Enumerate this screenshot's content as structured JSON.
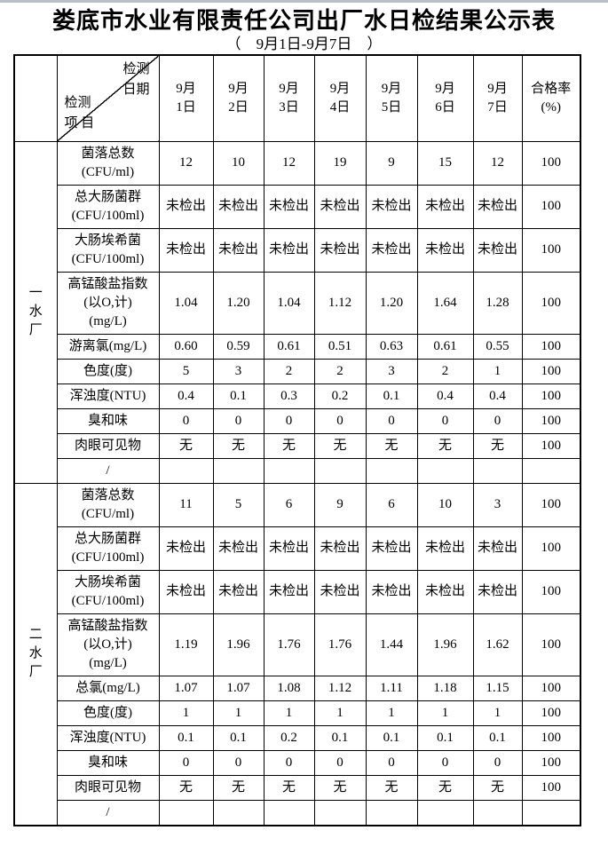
{
  "page": {
    "title": "娄底市水业有限责任公司出厂水日检结果公示表",
    "subtitle": "（　9月1日-9月7日　）"
  },
  "table": {
    "corner": {
      "top": "检测\n日期",
      "bottom": "检测\n项 目"
    },
    "dates": [
      "9月\n1日",
      "9月\n2日",
      "9月\n3日",
      "9月\n4日",
      "9月\n5日",
      "9月\n6日",
      "9月\n7日"
    ],
    "pass_rate_header": "合格率\n(%)",
    "sections": [
      {
        "plant": "一\n水\n厂",
        "rows": [
          {
            "label": "菌落总数\n(CFU/ml)",
            "values": [
              "12",
              "10",
              "12",
              "19",
              "9",
              "15",
              "12"
            ],
            "rate": "100"
          },
          {
            "label": "总大肠菌群\n(CFU/100ml)",
            "values": [
              "未检出",
              "未检出",
              "未检出",
              "未检出",
              "未检出",
              "未检出",
              "未检出"
            ],
            "rate": "100"
          },
          {
            "label": "大肠埃希菌\n(CFU/100ml)",
            "values": [
              "未检出",
              "未检出",
              "未检出",
              "未检出",
              "未检出",
              "未检出",
              "未检出"
            ],
            "rate": "100"
          },
          {
            "label": "高锰酸盐指数\n(以O,计)\n(mg/L)",
            "values": [
              "1.04",
              "1.20",
              "1.04",
              "1.12",
              "1.20",
              "1.64",
              "1.28"
            ],
            "rate": "100"
          },
          {
            "label": "游离氯(mg/L)",
            "values": [
              "0.60",
              "0.59",
              "0.61",
              "0.51",
              "0.63",
              "0.61",
              "0.55"
            ],
            "rate": "100"
          },
          {
            "label": "色度(度)",
            "values": [
              "5",
              "3",
              "2",
              "2",
              "3",
              "2",
              "1"
            ],
            "rate": "100"
          },
          {
            "label": "浑浊度(NTU)",
            "values": [
              "0.4",
              "0.1",
              "0.3",
              "0.2",
              "0.1",
              "0.4",
              "0.4"
            ],
            "rate": "100"
          },
          {
            "label": "臭和味",
            "values": [
              "0",
              "0",
              "0",
              "0",
              "0",
              "0",
              "0"
            ],
            "rate": "100"
          },
          {
            "label": "肉眼可见物",
            "values": [
              "无",
              "无",
              "无",
              "无",
              "无",
              "无",
              "无"
            ],
            "rate": "100"
          },
          {
            "label": "/",
            "values": [
              "",
              "",
              "",
              "",
              "",
              "",
              ""
            ],
            "rate": ""
          }
        ]
      },
      {
        "plant": "二\n水\n厂",
        "rows": [
          {
            "label": "菌落总数\n(CFU/ml)",
            "values": [
              "11",
              "5",
              "6",
              "9",
              "6",
              "10",
              "3"
            ],
            "rate": "100"
          },
          {
            "label": "总大肠菌群\n(CFU/100ml)",
            "values": [
              "未检出",
              "未检出",
              "未检出",
              "未检出",
              "未检出",
              "未检出",
              "未检出"
            ],
            "rate": "100"
          },
          {
            "label": "大肠埃希菌\n(CFU/100ml)",
            "values": [
              "未检出",
              "未检出",
              "未检出",
              "未检出",
              "未检出",
              "未检出",
              "未检出"
            ],
            "rate": "100"
          },
          {
            "label": "高锰酸盐指数\n(以O,计)\n(mg/L)",
            "values": [
              "1.19",
              "1.96",
              "1.76",
              "1.76",
              "1.44",
              "1.96",
              "1.62"
            ],
            "rate": "100"
          },
          {
            "label": "总氯(mg/L)",
            "values": [
              "1.07",
              "1.07",
              "1.08",
              "1.12",
              "1.11",
              "1.18",
              "1.15"
            ],
            "rate": "100"
          },
          {
            "label": "色度(度)",
            "values": [
              "1",
              "1",
              "1",
              "1",
              "1",
              "1",
              "1"
            ],
            "rate": "100"
          },
          {
            "label": "浑浊度(NTU)",
            "values": [
              "0.1",
              "0.1",
              "0.2",
              "0.1",
              "0.1",
              "0.1",
              "0.1"
            ],
            "rate": "100"
          },
          {
            "label": "臭和味",
            "values": [
              "0",
              "0",
              "0",
              "0",
              "0",
              "0",
              "0"
            ],
            "rate": "100"
          },
          {
            "label": "肉眼可见物",
            "values": [
              "无",
              "无",
              "无",
              "无",
              "无",
              "无",
              "无"
            ],
            "rate": "100"
          },
          {
            "label": "/",
            "values": [
              "",
              "",
              "",
              "",
              "",
              "",
              ""
            ],
            "rate": ""
          }
        ]
      }
    ]
  }
}
